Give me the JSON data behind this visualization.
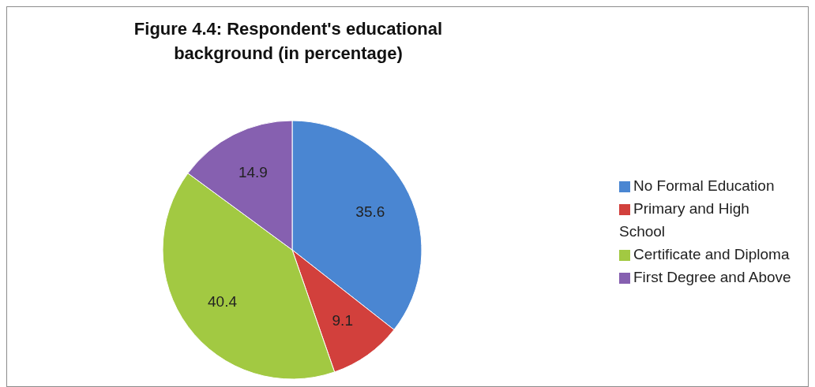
{
  "chart_data": {
    "type": "pie",
    "title": "Figure 4.4: Respondent's educational background (in percentage)",
    "categories": [
      "No Formal Education",
      "Primary and High School",
      "Certificate and Diploma",
      "First Degree and Above"
    ],
    "values": [
      35.6,
      9.1,
      40.4,
      14.9
    ],
    "colors": [
      "#4a86d2",
      "#d2403c",
      "#a2c942",
      "#8660b0"
    ],
    "data_labels": true,
    "legend": "right"
  }
}
